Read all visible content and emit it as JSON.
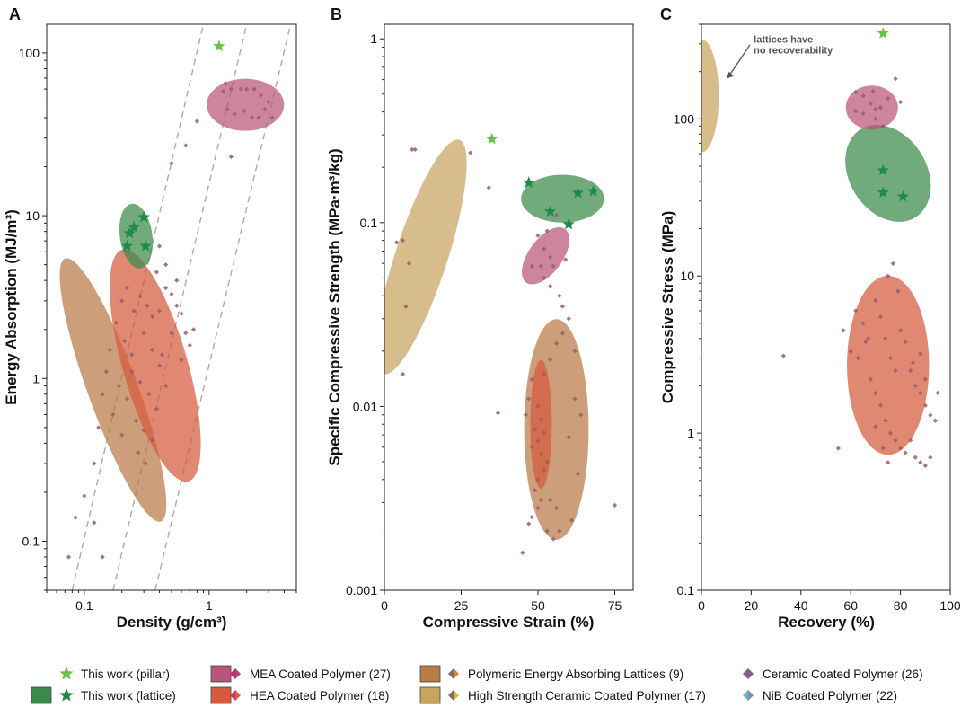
{
  "colors": {
    "mea": "#b8557a",
    "hea": "#d65a3c",
    "polymeric": "#b87a46",
    "ceramic_hs": "#c8a45e",
    "this_work_lattice": "#3a8a48",
    "pillar_star": "#6cc04a",
    "lattice_star": "#1f8a4a",
    "ceramic_coated": "#8a5a7a",
    "nib": "#5ab8c8",
    "guide_line": "#aaaaaa"
  },
  "chart_data": [
    {
      "panel": "A",
      "type": "scatter",
      "xlabel": "Density (g/cm³)",
      "ylabel": "Energy Absorption (MJ/m³)",
      "xscale": "log",
      "yscale": "log",
      "xlim": [
        0.05,
        5
      ],
      "ylim": [
        0.05,
        150
      ],
      "xticks": [
        {
          "v": 0.1,
          "label": "0.1"
        },
        {
          "v": 1,
          "label": "1"
        }
      ],
      "yticks": [
        {
          "v": 0.1,
          "label": "0.1"
        },
        {
          "v": 1,
          "label": "1"
        },
        {
          "v": 10,
          "label": "10"
        },
        {
          "v": 100,
          "label": "100"
        }
      ],
      "guide_lines": [
        {
          "x1": 0.08,
          "y1": 0.05,
          "x2": 0.9,
          "y2": 150
        },
        {
          "x1": 0.17,
          "y1": 0.05,
          "x2": 2,
          "y2": 150
        },
        {
          "x1": 0.37,
          "y1": 0.05,
          "x2": 4.5,
          "y2": 150
        }
      ],
      "ellipses": [
        {
          "series": "polymeric",
          "cx": 0.17,
          "cy": 0.85,
          "rx_dec": 0.2,
          "ry_dec": 0.86,
          "angle": -20
        },
        {
          "series": "hea",
          "cx": 0.37,
          "cy": 1.2,
          "rx_dec": 0.26,
          "ry_dec": 0.74,
          "angle": -16
        },
        {
          "series": "this_work_lattice",
          "cx": 0.26,
          "cy": 7.5,
          "rx_dec": 0.13,
          "ry_dec": 0.2,
          "angle": -8
        },
        {
          "series": "mea",
          "cx": 1.95,
          "cy": 48,
          "rx_dec": 0.31,
          "ry_dec": 0.16,
          "angle": 0
        }
      ],
      "stars_lattice": [
        [
          0.23,
          7.8
        ],
        [
          0.25,
          8.5
        ],
        [
          0.3,
          9.8
        ],
        [
          0.22,
          6.5
        ],
        [
          0.31,
          6.5
        ]
      ],
      "stars_pillar": [
        [
          1.2,
          110
        ]
      ],
      "points": [
        [
          0.075,
          0.08
        ],
        [
          0.085,
          0.14
        ],
        [
          0.1,
          0.19
        ],
        [
          0.12,
          0.3
        ],
        [
          0.13,
          0.5
        ],
        [
          0.14,
          0.8
        ],
        [
          0.15,
          1.1
        ],
        [
          0.16,
          1.5
        ],
        [
          0.18,
          2.2
        ],
        [
          0.2,
          3
        ],
        [
          0.22,
          3.6
        ],
        [
          0.24,
          1.4
        ],
        [
          0.12,
          0.13
        ],
        [
          0.14,
          0.08
        ],
        [
          0.17,
          0.6
        ],
        [
          0.19,
          0.9
        ],
        [
          0.21,
          1.7
        ],
        [
          0.25,
          2.6
        ],
        [
          0.28,
          3.2
        ],
        [
          0.32,
          2.8
        ],
        [
          0.35,
          2.4
        ],
        [
          0.4,
          2.6
        ],
        [
          0.45,
          3.6
        ],
        [
          0.5,
          3.3
        ],
        [
          0.55,
          2.8
        ],
        [
          0.6,
          2.5
        ],
        [
          0.65,
          1.9
        ],
        [
          0.7,
          1.6
        ],
        [
          0.3,
          1.9
        ],
        [
          0.35,
          1.5
        ],
        [
          0.4,
          1.2
        ],
        [
          0.5,
          1.9
        ],
        [
          0.28,
          0.95
        ],
        [
          0.33,
          0.8
        ],
        [
          0.38,
          0.65
        ],
        [
          0.26,
          0.55
        ],
        [
          0.3,
          0.48
        ],
        [
          0.35,
          0.42
        ],
        [
          0.27,
          0.35
        ],
        [
          0.31,
          0.3
        ],
        [
          0.24,
          1.1
        ],
        [
          0.22,
          0.75
        ],
        [
          0.42,
          1.4
        ],
        [
          0.45,
          0.9
        ],
        [
          0.6,
          1.3
        ],
        [
          0.2,
          0.45
        ],
        [
          0.55,
          4.0
        ],
        [
          0.75,
          2.0
        ],
        [
          0.38,
          4.5
        ],
        [
          0.4,
          6.5
        ],
        [
          0.45,
          5.0
        ],
        [
          0.5,
          21
        ],
        [
          0.65,
          27
        ],
        [
          0.8,
          38
        ],
        [
          1.5,
          23
        ],
        [
          1.3,
          58
        ],
        [
          1.5,
          60
        ],
        [
          1.8,
          60
        ],
        [
          2.0,
          60
        ],
        [
          2.3,
          60
        ],
        [
          2.6,
          55
        ],
        [
          3.0,
          50
        ],
        [
          1.4,
          45
        ],
        [
          1.6,
          42
        ],
        [
          1.9,
          44
        ],
        [
          2.2,
          40
        ],
        [
          2.5,
          40
        ],
        [
          3.2,
          40
        ],
        [
          1.35,
          65
        ],
        [
          2.8,
          45
        ]
      ]
    },
    {
      "panel": "B",
      "type": "scatter",
      "xlabel": "Compressive Strain (%)",
      "ylabel": "Specific Compressive Strength (MPa·m³/kg)",
      "xscale": "linear",
      "yscale": "log",
      "xlim": [
        0,
        81
      ],
      "ylim": [
        0.001,
        1.2
      ],
      "xticks": [
        {
          "v": 0,
          "label": "0"
        },
        {
          "v": 25,
          "label": "25"
        },
        {
          "v": 50,
          "label": "50"
        },
        {
          "v": 75,
          "label": "75"
        }
      ],
      "yticks": [
        {
          "v": 0.001,
          "label": "0.001"
        },
        {
          "v": 0.01,
          "label": "0.01"
        },
        {
          "v": 0.1,
          "label": "0.1"
        },
        {
          "v": 1,
          "label": "1"
        }
      ],
      "ellipses": [
        {
          "series": "ceramic_hs",
          "cx": 12,
          "cy": 0.065,
          "rx_dec": 8.5,
          "ry_dec": 0.67,
          "angle": 18
        },
        {
          "series": "polymeric",
          "cx": 56,
          "cy": 0.0075,
          "rx_dec": 10.5,
          "ry_dec": 0.6,
          "angle": 0
        },
        {
          "series": "hea",
          "cx": 51,
          "cy": 0.008,
          "rx_dec": 3.5,
          "ry_dec": 0.35,
          "angle": 0
        },
        {
          "series": "this_work_lattice",
          "cx": 58,
          "cy": 0.135,
          "rx_dec": 13.5,
          "ry_dec": 0.13,
          "angle": 0
        },
        {
          "series": "mea",
          "cx": 52.5,
          "cy": 0.066,
          "rx_dec": 5.5,
          "ry_dec": 0.18,
          "angle": 36
        }
      ],
      "stars_lattice": [
        [
          47,
          0.165
        ],
        [
          54,
          0.115
        ],
        [
          60,
          0.098
        ],
        [
          63,
          0.145
        ],
        [
          68,
          0.148
        ]
      ],
      "stars_pillar": [
        [
          35,
          0.285
        ]
      ],
      "points": [
        [
          9,
          0.25
        ],
        [
          10,
          0.25
        ],
        [
          28,
          0.24
        ],
        [
          34,
          0.155
        ],
        [
          4,
          0.078
        ],
        [
          6,
          0.08
        ],
        [
          8,
          0.06
        ],
        [
          7,
          0.035
        ],
        [
          6,
          0.015
        ],
        [
          50,
          0.085
        ],
        [
          52,
          0.072
        ],
        [
          54,
          0.065
        ],
        [
          55,
          0.058
        ],
        [
          51,
          0.058
        ],
        [
          48,
          0.058
        ],
        [
          52,
          0.05
        ],
        [
          54,
          0.045
        ],
        [
          59,
          0.063
        ],
        [
          53,
          0.09
        ],
        [
          56,
          0.11
        ],
        [
          57,
          0.04
        ],
        [
          58,
          0.035
        ],
        [
          60,
          0.03
        ],
        [
          62,
          0.02
        ],
        [
          58,
          0.025
        ],
        [
          56,
          0.022
        ],
        [
          54,
          0.018
        ],
        [
          52,
          0.015
        ],
        [
          48,
          0.014
        ],
        [
          47,
          0.011
        ],
        [
          46,
          0.009
        ],
        [
          50,
          0.01
        ],
        [
          51,
          0.0085
        ],
        [
          49,
          0.0075
        ],
        [
          52,
          0.0072
        ],
        [
          50,
          0.0065
        ],
        [
          48,
          0.006
        ],
        [
          51,
          0.0055
        ],
        [
          53,
          0.005
        ],
        [
          52,
          0.0045
        ],
        [
          50,
          0.004
        ],
        [
          49,
          0.0035
        ],
        [
          51,
          0.0031
        ],
        [
          50,
          0.0028
        ],
        [
          48,
          0.0025
        ],
        [
          47,
          0.0023
        ],
        [
          53,
          0.0021
        ],
        [
          55,
          0.0019
        ],
        [
          57,
          0.0021
        ],
        [
          54,
          0.0031
        ],
        [
          56,
          0.0028
        ],
        [
          63,
          0.0043
        ],
        [
          62,
          0.011
        ],
        [
          64,
          0.009
        ],
        [
          60,
          0.0068
        ],
        [
          45,
          0.0016
        ],
        [
          37,
          0.0092
        ],
        [
          75,
          0.0029
        ],
        [
          61,
          0.0024
        ]
      ]
    },
    {
      "panel": "C",
      "type": "scatter",
      "xlabel": "Recovery (%)",
      "ylabel": "Compressive Stress (MPa)",
      "xscale": "linear",
      "yscale": "log",
      "xlim": [
        0,
        100
      ],
      "ylim": [
        0.1,
        400
      ],
      "xticks": [
        {
          "v": 0,
          "label": "0"
        },
        {
          "v": 20,
          "label": "20"
        },
        {
          "v": 40,
          "label": "40"
        },
        {
          "v": 60,
          "label": "60"
        },
        {
          "v": 80,
          "label": "80"
        },
        {
          "v": 100,
          "label": "100"
        }
      ],
      "yticks": [
        {
          "v": 0.1,
          "label": "0.1"
        },
        {
          "v": 1,
          "label": "1"
        },
        {
          "v": 10,
          "label": "10"
        },
        {
          "v": 100,
          "label": "100"
        }
      ],
      "annotation": {
        "line1": "lattices have",
        "line2": "no recoverability",
        "tx": 21,
        "ty": 305,
        "arrow_to_x": 10,
        "arrow_to_y": 180
      },
      "ellipses": [
        {
          "series": "ceramic_hs",
          "cx": 0,
          "cy": 140,
          "rx_dec": 7,
          "ry_dec": 0.36,
          "angle": 0
        },
        {
          "series": "hea",
          "cx": 75,
          "cy": 2.7,
          "rx_dec": 16.5,
          "ry_dec": 0.57,
          "angle": 0
        },
        {
          "series": "this_work_lattice",
          "cx": 75,
          "cy": 45,
          "rx_dec": 15.5,
          "ry_dec": 0.33,
          "angle": -32
        },
        {
          "series": "mea",
          "cx": 68.5,
          "cy": 118,
          "rx_dec": 10.5,
          "ry_dec": 0.14,
          "angle": 0
        }
      ],
      "stars_lattice": [
        [
          73,
          47
        ],
        [
          73,
          34
        ],
        [
          81,
          32
        ]
      ],
      "stars_pillar": [
        [
          73,
          350
        ]
      ],
      "points": [
        [
          62,
          148
        ],
        [
          65,
          140
        ],
        [
          68,
          125
        ],
        [
          70,
          115
        ],
        [
          72,
          118
        ],
        [
          75,
          135
        ],
        [
          78,
          180
        ],
        [
          80,
          128
        ],
        [
          62,
          112
        ],
        [
          65,
          108
        ],
        [
          70,
          100
        ],
        [
          73,
          90
        ],
        [
          69,
          150
        ],
        [
          57,
          4.5
        ],
        [
          60,
          3.3
        ],
        [
          62,
          6
        ],
        [
          65,
          5
        ],
        [
          67,
          4
        ],
        [
          70,
          7
        ],
        [
          72,
          5.5
        ],
        [
          74,
          4
        ],
        [
          76,
          3
        ],
        [
          78,
          2.5
        ],
        [
          80,
          4.5
        ],
        [
          82,
          3.8
        ],
        [
          84,
          2.5
        ],
        [
          86,
          2.0
        ],
        [
          88,
          1.8
        ],
        [
          90,
          1.5
        ],
        [
          92,
          1.3
        ],
        [
          94,
          1.2
        ],
        [
          95,
          1.8
        ],
        [
          68,
          2.2
        ],
        [
          70,
          1.8
        ],
        [
          72,
          1.5
        ],
        [
          74,
          1.2
        ],
        [
          76,
          1.0
        ],
        [
          78,
          0.9
        ],
        [
          80,
          0.8
        ],
        [
          82,
          0.75
        ],
        [
          84,
          0.9
        ],
        [
          86,
          0.7
        ],
        [
          88,
          0.65
        ],
        [
          90,
          0.62
        ],
        [
          92,
          0.7
        ],
        [
          70,
          1.1
        ],
        [
          73,
          0.8
        ],
        [
          75,
          0.65
        ],
        [
          55,
          0.8
        ],
        [
          33,
          3.1
        ],
        [
          75,
          10
        ],
        [
          77,
          12
        ],
        [
          79,
          8
        ],
        [
          63,
          3
        ],
        [
          85,
          2.8
        ],
        [
          88,
          3.2
        ],
        [
          66,
          3.8
        ],
        [
          90,
          2.2
        ]
      ]
    }
  ],
  "panels": {
    "A": {
      "letter": "A"
    },
    "B": {
      "letter": "B"
    },
    "C": {
      "letter": "C"
    }
  },
  "legend": [
    {
      "label": "This work (pillar)",
      "swatch": null,
      "icon": "pillar-star-icon"
    },
    {
      "label": "This work (lattice)",
      "swatch": "this_work_lattice",
      "icon": "lattice-star-icon"
    },
    {
      "label": "MEA Coated Polymer (27)",
      "swatch": "mea",
      "icon": "diamond-icon"
    },
    {
      "label": "HEA Coated Polymer (18)",
      "swatch": "hea",
      "icon": "diamond-icon"
    },
    {
      "label": "Polymeric Energy Absorbing Lattices (9)",
      "swatch": "polymeric",
      "icon": "diamond-icon"
    },
    {
      "label": "High Strength Ceramic Coated Polymer (17)",
      "swatch": "ceramic_hs",
      "icon": "diamond-icon"
    },
    {
      "label": "Ceramic Coated Polymer (26)",
      "swatch": null,
      "icon": "diamond-icon"
    },
    {
      "label": "NiB Coated Polymer (22)",
      "swatch": null,
      "icon": "diamond-icon"
    }
  ]
}
